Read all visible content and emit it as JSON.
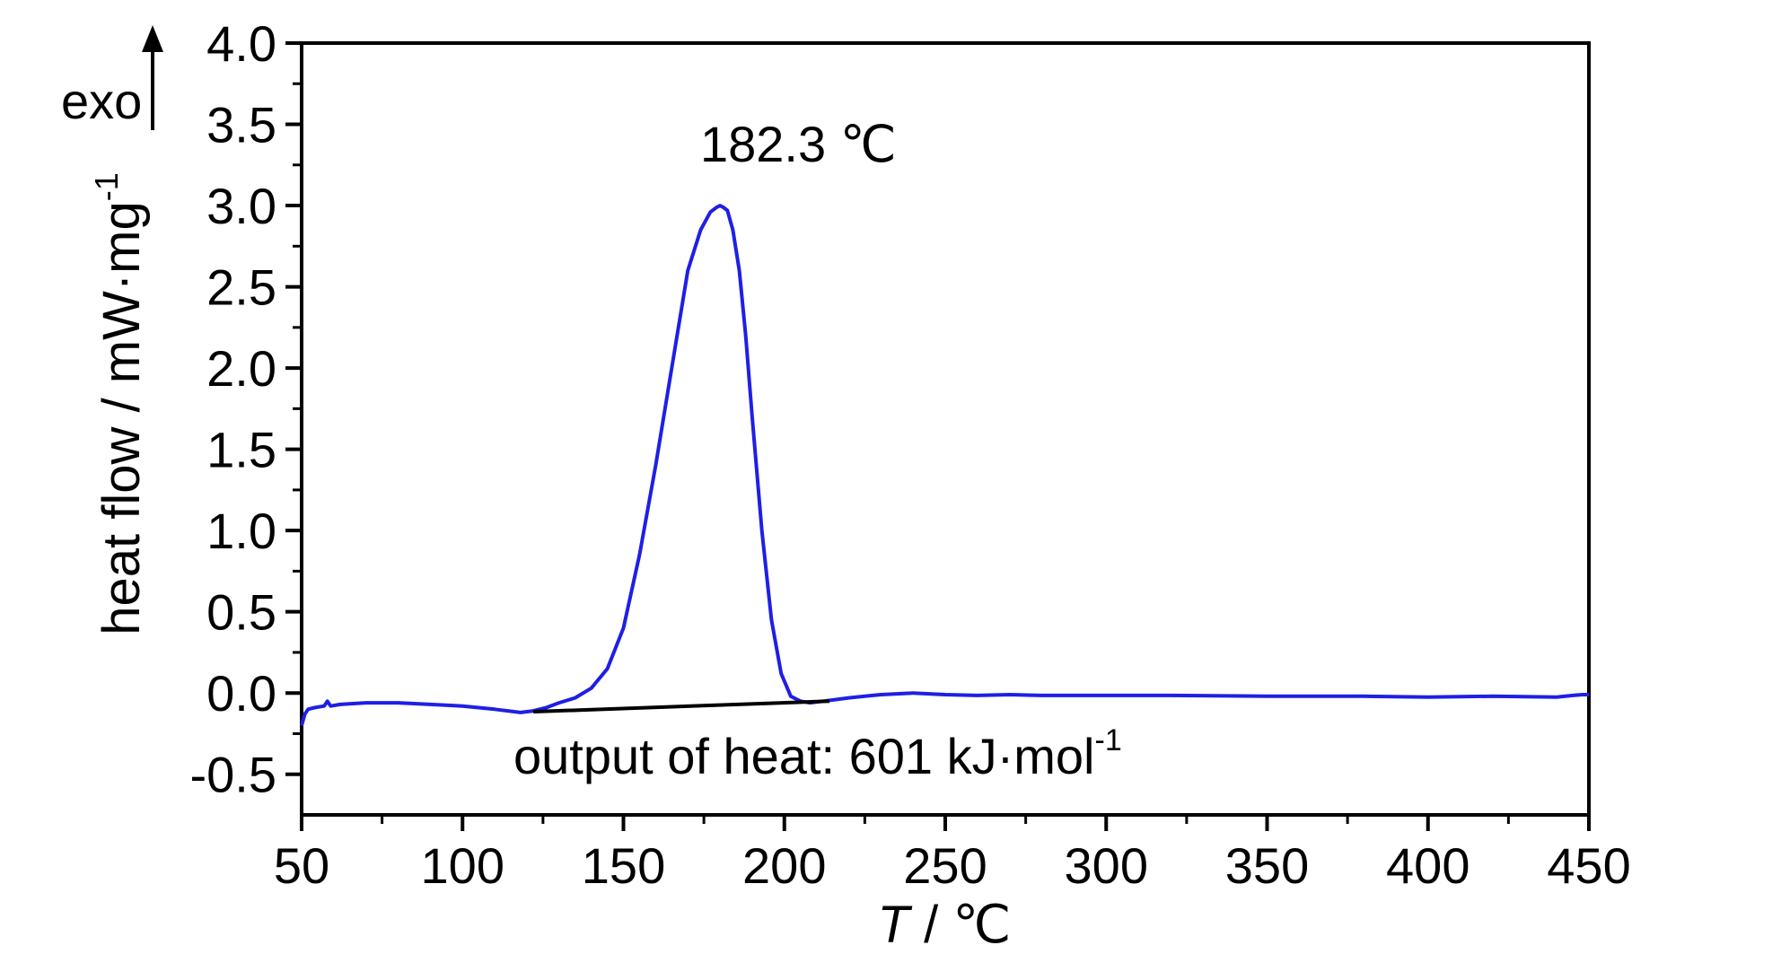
{
  "chart_data": {
    "type": "line",
    "xlabel_italic": "T",
    "xlabel_rest": " / ℃",
    "ylabel_main": "heat flow / mW·mg",
    "ylabel_sup": "-1",
    "xlim": [
      50,
      450
    ],
    "ylim": [
      -0.75,
      4.0
    ],
    "xticks": [
      50,
      100,
      150,
      200,
      250,
      300,
      350,
      400,
      450
    ],
    "yticks": [
      -0.5,
      0.0,
      0.5,
      1.0,
      1.5,
      2.0,
      2.5,
      3.0,
      3.5,
      4.0
    ],
    "ytick_labels": [
      "-0.5",
      "0.0",
      "0.5",
      "1.0",
      "1.5",
      "2.0",
      "2.5",
      "3.0",
      "3.5",
      "4.0"
    ],
    "exo_label": "exo",
    "peak_label": "182.3 ℃",
    "heat_label_main": "output of heat: 601 kJ·mol",
    "heat_label_sup": "-1",
    "series": [
      {
        "color": "#1f1fe6",
        "x": [
          50,
          51,
          52,
          54,
          57,
          58,
          59,
          62,
          70,
          80,
          90,
          100,
          110,
          118,
          122,
          126,
          130,
          135,
          140,
          145,
          150,
          155,
          160,
          165,
          170,
          174,
          177,
          179,
          180,
          181,
          182.3,
          184,
          186,
          188,
          190,
          193,
          196,
          199,
          202,
          205,
          208,
          212,
          216,
          220,
          225,
          230,
          235,
          240,
          245,
          250,
          260,
          270,
          280,
          300,
          320,
          350,
          380,
          400,
          420,
          440,
          445,
          448,
          450
        ],
        "y": [
          -0.2,
          -0.13,
          -0.1,
          -0.09,
          -0.08,
          -0.05,
          -0.08,
          -0.07,
          -0.06,
          -0.06,
          -0.07,
          -0.08,
          -0.1,
          -0.12,
          -0.11,
          -0.09,
          -0.06,
          -0.03,
          0.03,
          0.15,
          0.4,
          0.85,
          1.4,
          2.0,
          2.6,
          2.85,
          2.96,
          2.99,
          3.0,
          2.99,
          2.97,
          2.85,
          2.6,
          2.2,
          1.7,
          1.0,
          0.45,
          0.12,
          -0.02,
          -0.05,
          -0.06,
          -0.05,
          -0.04,
          -0.03,
          -0.02,
          -0.01,
          -0.005,
          0.0,
          -0.005,
          -0.01,
          -0.015,
          -0.01,
          -0.015,
          -0.015,
          -0.015,
          -0.02,
          -0.02,
          -0.025,
          -0.02,
          -0.025,
          -0.015,
          -0.01,
          -0.01
        ]
      }
    ],
    "baseline": {
      "color": "#000000",
      "x": [
        122,
        214
      ],
      "y": [
        -0.115,
        -0.05
      ]
    }
  }
}
